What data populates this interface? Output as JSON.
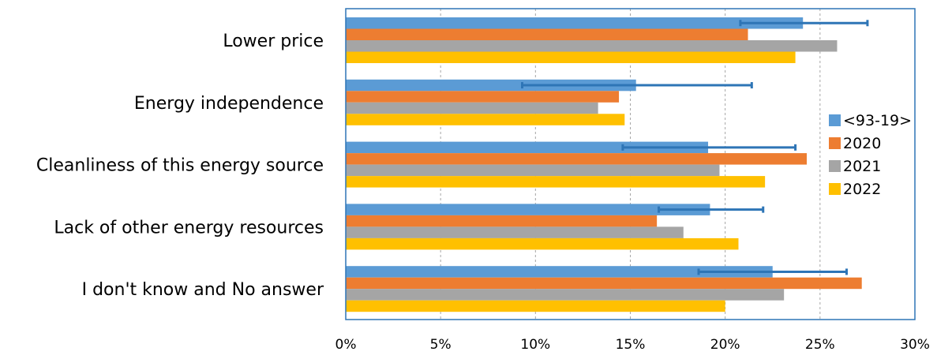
{
  "chart_data": {
    "type": "bar",
    "orientation": "horizontal",
    "title": "",
    "xlabel": "",
    "ylabel": "",
    "xlim": [
      0,
      30
    ],
    "x_ticks": [
      "0%",
      "5%",
      "10%",
      "15%",
      "20%",
      "25%",
      "30%"
    ],
    "x_tick_values": [
      0,
      5,
      10,
      15,
      20,
      25,
      30
    ],
    "grid": "vertical dashed",
    "legend_position": "right",
    "categories": [
      "Lower price",
      "Energy independence",
      "Cleanliness of this energy source",
      "Lack of other energy resources",
      "I don't know and No answer"
    ],
    "series": [
      {
        "name": "<93-19>",
        "color": "#5B9BD5",
        "values": [
          24.1,
          15.3,
          19.1,
          19.2,
          22.5
        ],
        "error_low": [
          20.8,
          9.3,
          14.6,
          16.5,
          18.6
        ],
        "error_high": [
          27.5,
          21.4,
          23.7,
          22.0,
          26.4
        ]
      },
      {
        "name": "2020",
        "color": "#ED7D31",
        "values": [
          21.2,
          14.4,
          24.3,
          16.4,
          27.2
        ]
      },
      {
        "name": "2021",
        "color": "#A5A5A5",
        "values": [
          25.9,
          13.3,
          19.7,
          17.8,
          23.1
        ]
      },
      {
        "name": "2022",
        "color": "#FFC000",
        "values": [
          23.7,
          14.7,
          22.1,
          20.7,
          20.0
        ]
      }
    ],
    "axis_color": "#2E75B6",
    "error_bar_color": "#2E75B6"
  }
}
